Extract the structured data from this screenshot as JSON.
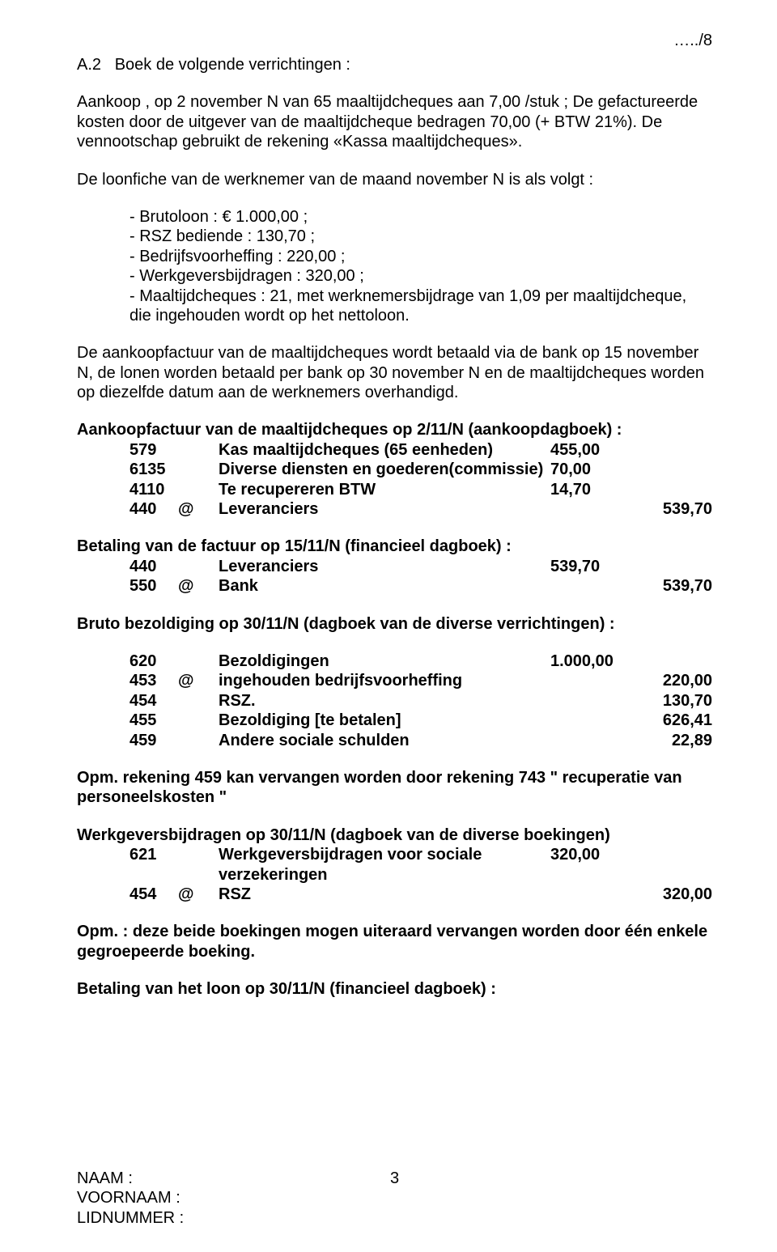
{
  "page_mark": "…../8",
  "heading": "A.2   Boek de volgende verrichtingen :",
  "intro1": "Aankoop , op 2 november N van 65 maaltijdcheques aan 7,00 /stuk ; De gefactureerde kosten door de uitgever van de maaltijdcheque bedragen 70,00 (+ BTW 21%). De vennootschap gebruikt de rekening «Kassa maaltijdcheques».",
  "intro2": "De loonfiche van de werknemer van de maand november N is als volgt :",
  "list": [
    "- Brutoloon  : € 1.000,00 ;",
    "- RSZ bediende : 130,70 ;",
    "- Bedrijfsvoorheffing : 220,00 ;",
    "- Werkgeversbijdragen  : 320,00 ;",
    "- Maaltijdcheques : 21, met werknemersbijdrage van 1,09 per maaltijdcheque, die ingehouden wordt op het nettoloon."
  ],
  "intro3": "De aankoopfactuur van de maaltijdcheques wordt betaald via de bank op 15 november N, de lonen worden betaald per bank op 30 november N en de maaltijdcheques worden op diezelfde datum aan de werknemers overhandigd.",
  "section1": {
    "title": "Aankoopfactuur van de maaltijdcheques op 2/11/N (aankoopdagboek) :",
    "rows": [
      {
        "acct": "579",
        "at": "",
        "desc": "Kas maaltijdcheques (65 eenheden)",
        "amt1": "455,00",
        "amt2": ""
      },
      {
        "acct": "6135",
        "at": "",
        "desc": "Diverse diensten en goederen(commissie)",
        "amt1": "70,00",
        "amt2": ""
      },
      {
        "acct": "4110",
        "at": "",
        "desc": "Te recupereren BTW",
        "amt1": "14,70",
        "amt2": ""
      },
      {
        "acct": "440",
        "at": "@",
        "desc": "Leveranciers",
        "amt1": "",
        "amt2": "539,70"
      }
    ]
  },
  "section2": {
    "title": "Betaling van de factuur op 15/11/N (financieel dagboek) :",
    "rows": [
      {
        "acct": "440",
        "at": "",
        "desc": "Leveranciers",
        "amt1": "539,70",
        "amt2": ""
      },
      {
        "acct": "550",
        "at": "@",
        "desc": "Bank",
        "amt1": "",
        "amt2": "539,70"
      }
    ]
  },
  "section3": {
    "title": "Bruto bezoldiging op 30/11/N (dagboek van de diverse verrichtingen) :",
    "rows": [
      {
        "acct": "620",
        "at": "",
        "desc": "Bezoldigingen",
        "amt1": "1.000,00",
        "amt2": ""
      },
      {
        "acct": "453",
        "at": "@",
        "desc": "ingehouden bedrijfsvoorheffing",
        "amt1": "",
        "amt2": "220,00"
      },
      {
        "acct": "454",
        "at": "",
        "desc": "RSZ.",
        "amt1": "",
        "amt2": "130,70"
      },
      {
        "acct": "455",
        "at": "",
        "desc": "Bezoldiging  [te betalen]",
        "amt1": "",
        "amt2": "626,41"
      },
      {
        "acct": "459",
        "at": "",
        "desc": "Andere sociale schulden",
        "amt1": "",
        "amt2": "22,89"
      }
    ]
  },
  "note1": "Opm. rekening 459 kan vervangen worden door rekening 743 \" recuperatie van personeelskosten \"",
  "section4": {
    "title": "Werkgeversbijdragen op 30/11/N (dagboek van de diverse boekingen)",
    "rows": [
      {
        "acct": "621",
        "at": "",
        "desc": "Werkgeversbijdragen voor sociale verzekeringen",
        "amt1": "320,00",
        "amt2": ""
      },
      {
        "acct": "454",
        "at": "@",
        "desc": "RSZ",
        "amt1": "",
        "amt2": "320,00"
      }
    ]
  },
  "note2": "Opm. : deze beide boekingen mogen uiteraard vervangen worden door één enkele gegroepeerde boeking.",
  "section5_title": "Betaling van het loon op 30/11/N  (financieel dagboek) :",
  "footer": {
    "naam": "NAAM :",
    "voornaam": "VOORNAAM :",
    "lidnummer": "LIDNUMMER :",
    "pagenum": "3"
  }
}
